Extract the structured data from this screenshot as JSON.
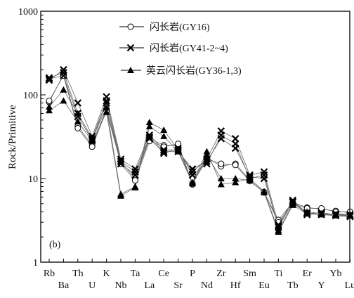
{
  "chart_data": {
    "type": "line",
    "panel_label": "(b)",
    "ylabel": "Rock/Primitive",
    "xlabel": "",
    "yscale": "log",
    "ylim": [
      1,
      1000
    ],
    "ytick_labels": [
      "1",
      "10",
      "100",
      "1000"
    ],
    "categories": [
      "Rb",
      "Ba",
      "Th",
      "U",
      "K",
      "Nb",
      "Ta",
      "La",
      "Ce",
      "Sr",
      "P",
      "Nd",
      "Zr",
      "Hf",
      "Sm",
      "Eu",
      "Ti",
      "Tb",
      "Er",
      "Y",
      "Yb",
      "Lu"
    ],
    "legend_position": "top-right",
    "series": [
      {
        "name": "闪长岩(GY16)",
        "marker": "open-circle",
        "samples": [
          [
            82,
            175,
            42,
            25,
            68,
            16,
            10,
            30,
            25,
            25,
            8.5,
            18,
            14,
            15,
            9.5,
            6.8,
            3.2,
            5.2,
            4.5,
            4.3,
            4.1,
            3.9
          ],
          [
            85,
            170,
            40,
            24,
            65,
            15,
            9.5,
            28,
            24,
            26,
            8.7,
            17,
            15,
            14.5,
            9.3,
            6.9,
            3.0,
            5.0,
            4.4,
            4.4,
            4.0,
            4.0
          ]
        ]
      },
      {
        "name": "闪长岩(GY41-2~4)",
        "marker": "cross",
        "samples": [
          [
            150,
            200,
            80,
            32,
            95,
            17,
            13,
            33,
            22,
            22,
            12,
            17,
            37,
            30,
            11,
            12,
            2.8,
            5.5,
            3.8,
            3.9,
            3.7,
            3.6
          ],
          [
            160,
            185,
            60,
            30,
            85,
            16,
            12,
            31,
            20,
            23,
            11,
            15,
            33,
            26,
            10,
            11,
            2.6,
            5.3,
            3.7,
            3.8,
            3.6,
            3.5
          ],
          [
            155,
            170,
            55,
            29,
            80,
            15,
            11,
            30,
            21,
            21,
            13,
            16,
            30,
            23,
            10.5,
            10,
            2.7,
            5.2,
            3.9,
            3.7,
            3.8,
            3.7
          ]
        ]
      },
      {
        "name": "英云闪长岩(GY36-1,3)",
        "marker": "filled-triangle",
        "samples": [
          [
            72,
            115,
            60,
            30,
            70,
            6.5,
            8,
            47,
            38,
            22,
            9,
            21,
            8.5,
            9,
            10,
            7,
            2.4,
            5,
            4,
            3.8,
            3.7,
            3.7
          ],
          [
            65,
            85,
            48,
            28,
            62,
            6.2,
            7.8,
            42,
            32,
            21,
            8.8,
            19,
            10,
            10,
            9.5,
            6.8,
            2.3,
            4.8,
            3.8,
            3.7,
            3.6,
            3.6
          ]
        ]
      }
    ]
  }
}
